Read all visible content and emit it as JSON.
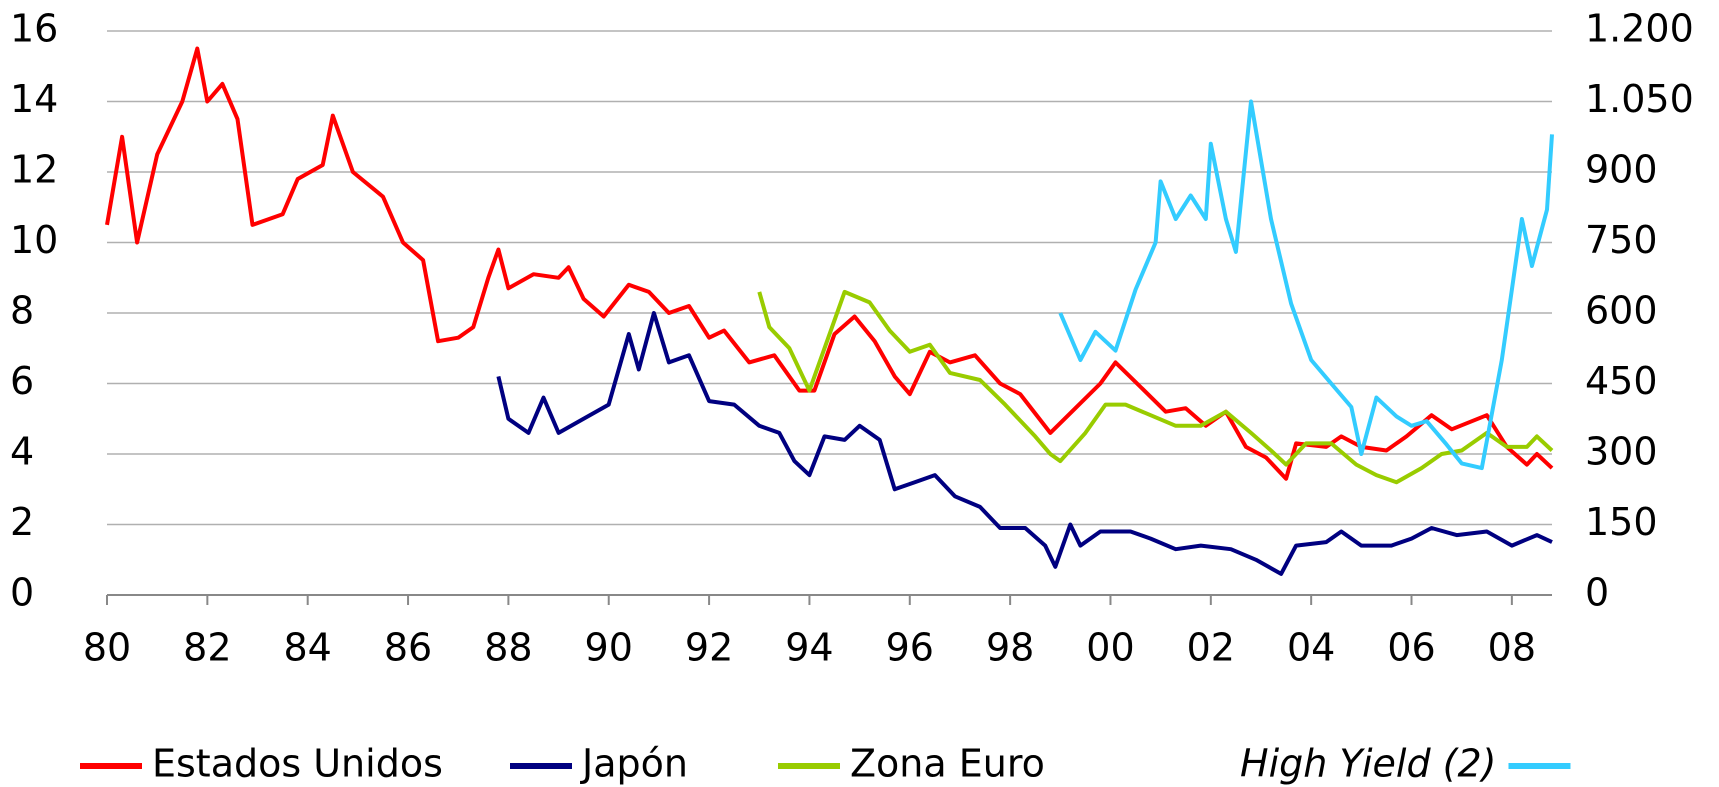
{
  "chart_data": {
    "type": "line",
    "xlim": [
      1980,
      2008.8
    ],
    "xticks": [
      {
        "value": 1980,
        "label": "80"
      },
      {
        "value": 1982,
        "label": "82"
      },
      {
        "value": 1984,
        "label": "84"
      },
      {
        "value": 1986,
        "label": "86"
      },
      {
        "value": 1988,
        "label": "88"
      },
      {
        "value": 1990,
        "label": "90"
      },
      {
        "value": 1992,
        "label": "92"
      },
      {
        "value": 1994,
        "label": "94"
      },
      {
        "value": 1996,
        "label": "96"
      },
      {
        "value": 1998,
        "label": "98"
      },
      {
        "value": 2000,
        "label": "00"
      },
      {
        "value": 2002,
        "label": "02"
      },
      {
        "value": 2004,
        "label": "04"
      },
      {
        "value": 2006,
        "label": "06"
      },
      {
        "value": 2008,
        "label": "08"
      }
    ],
    "ylim": [
      0,
      16
    ],
    "yticks": [
      0,
      2,
      4,
      6,
      8,
      10,
      12,
      14,
      16
    ],
    "y2lim": [
      0,
      1200
    ],
    "y2ticks": [
      0,
      150,
      300,
      450,
      600,
      750,
      900,
      {
        "value": 1050,
        "label": "1.050"
      },
      {
        "value": 1200,
        "label": "1.200"
      }
    ],
    "grid": true,
    "series": [
      {
        "name": "Estados Unidos",
        "color": "#ff0000",
        "x": [
          1980.0,
          1980.3,
          1980.6,
          1981.0,
          1981.5,
          1981.8,
          1982.0,
          1982.3,
          1982.6,
          1982.9,
          1983.5,
          1983.8,
          1984.3,
          1984.5,
          1984.9,
          1985.5,
          1985.9,
          1986.3,
          1986.6,
          1987.0,
          1987.3,
          1987.6,
          1987.8,
          1988.0,
          1988.5,
          1989.0,
          1989.2,
          1989.5,
          1989.9,
          1990.4,
          1990.8,
          1991.2,
          1991.6,
          1992.0,
          1992.3,
          1992.8,
          1993.3,
          1993.8,
          1994.1,
          1994.5,
          1994.9,
          1995.3,
          1995.7,
          1996.0,
          1996.4,
          1996.8,
          1997.3,
          1997.8,
          1998.2,
          1998.8,
          1999.3,
          1999.8,
          2000.1,
          2000.6,
          2001.1,
          2001.5,
          2001.9,
          2002.3,
          2002.7,
          2003.1,
          2003.5,
          2003.7,
          2004.3,
          2004.6,
          2005.0,
          2005.5,
          2005.9,
          2006.4,
          2006.8,
          2007.5,
          2007.9,
          2008.3,
          2008.5,
          2008.8
        ],
        "values": [
          10.5,
          13,
          10,
          12.5,
          14,
          15.5,
          14,
          14.5,
          13.5,
          10.5,
          10.8,
          11.8,
          12.2,
          13.6,
          12,
          11.3,
          10,
          9.5,
          7.2,
          7.3,
          7.6,
          9,
          9.8,
          8.7,
          9.1,
          9.0,
          9.3,
          8.4,
          7.9,
          8.8,
          8.6,
          8.0,
          8.2,
          7.3,
          7.5,
          6.6,
          6.8,
          5.8,
          5.8,
          7.4,
          7.9,
          7.2,
          6.2,
          5.7,
          6.9,
          6.6,
          6.8,
          6.0,
          5.7,
          4.6,
          5.3,
          6.0,
          6.6,
          5.9,
          5.2,
          5.3,
          4.8,
          5.2,
          4.2,
          3.9,
          3.3,
          4.3,
          4.2,
          4.5,
          4.2,
          4.1,
          4.5,
          5.1,
          4.7,
          5.1,
          4.2,
          3.7,
          4.0,
          3.6
        ]
      },
      {
        "name": "Japón",
        "color": "#000080",
        "x": [
          1987.8,
          1988.0,
          1988.4,
          1988.7,
          1989.0,
          1989.5,
          1990.0,
          1990.4,
          1990.6,
          1990.9,
          1991.2,
          1991.6,
          1992.0,
          1992.5,
          1993.0,
          1993.4,
          1993.7,
          1994.0,
          1994.3,
          1994.7,
          1995.0,
          1995.4,
          1995.7,
          1996.1,
          1996.5,
          1996.9,
          1997.4,
          1997.8,
          1998.3,
          1998.7,
          1998.9,
          1999.2,
          1999.4,
          1999.8,
          2000.4,
          2000.8,
          2001.3,
          2001.8,
          2002.4,
          2002.9,
          2003.4,
          2003.7,
          2004.3,
          2004.6,
          2005.0,
          2005.6,
          2006.0,
          2006.4,
          2006.9,
          2007.5,
          2008.0,
          2008.5,
          2008.8
        ],
        "values": [
          6.2,
          5.0,
          4.6,
          5.6,
          4.6,
          5.0,
          5.4,
          7.4,
          6.4,
          8.0,
          6.6,
          6.8,
          5.5,
          5.4,
          4.8,
          4.6,
          3.8,
          3.4,
          4.5,
          4.4,
          4.8,
          4.4,
          3.0,
          3.2,
          3.4,
          2.8,
          2.5,
          1.9,
          1.9,
          1.4,
          0.8,
          2.0,
          1.4,
          1.8,
          1.8,
          1.6,
          1.3,
          1.4,
          1.3,
          1.0,
          0.6,
          1.4,
          1.5,
          1.8,
          1.4,
          1.4,
          1.6,
          1.9,
          1.7,
          1.8,
          1.4,
          1.7,
          1.5
        ]
      },
      {
        "name": "Zona Euro",
        "color": "#99cc00",
        "x": [
          1993.0,
          1993.2,
          1993.6,
          1994.0,
          1994.3,
          1994.7,
          1995.2,
          1995.6,
          1996.0,
          1996.4,
          1996.8,
          1997.4,
          1997.9,
          1998.5,
          1998.8,
          1999.0,
          1999.5,
          1999.9,
          2000.3,
          2000.8,
          2001.3,
          2001.8,
          2002.3,
          2002.8,
          2003.2,
          2003.5,
          2003.9,
          2004.4,
          2004.9,
          2005.3,
          2005.7,
          2006.2,
          2006.6,
          2007.0,
          2007.5,
          2007.9,
          2008.3,
          2008.5,
          2008.8
        ],
        "values": [
          8.6,
          7.6,
          7.0,
          5.8,
          7.0,
          8.6,
          8.3,
          7.5,
          6.9,
          7.1,
          6.3,
          6.1,
          5.4,
          4.5,
          4.0,
          3.8,
          4.6,
          5.4,
          5.4,
          5.1,
          4.8,
          4.8,
          5.2,
          4.6,
          4.1,
          3.7,
          4.3,
          4.3,
          3.7,
          3.4,
          3.2,
          3.6,
          4.0,
          4.1,
          4.6,
          4.2,
          4.2,
          4.5,
          4.1
        ]
      },
      {
        "name": "High Yield (2)",
        "color": "#33ccff",
        "axis": "y2",
        "x": [
          1999.0,
          1999.4,
          1999.7,
          2000.1,
          2000.5,
          2000.9,
          2001.0,
          2001.3,
          2001.6,
          2001.9,
          2002.0,
          2002.3,
          2002.5,
          2002.8,
          2003.2,
          2003.6,
          2004.0,
          2004.4,
          2004.8,
          2005.0,
          2005.3,
          2005.7,
          2006.0,
          2006.3,
          2006.7,
          2007.0,
          2007.4,
          2007.8,
          2008.0,
          2008.2,
          2008.4,
          2008.7,
          2008.8
        ],
        "values": [
          600,
          500,
          560,
          520,
          650,
          750,
          880,
          800,
          850,
          800,
          960,
          800,
          730,
          1050,
          800,
          620,
          500,
          450,
          400,
          300,
          420,
          380,
          360,
          370,
          320,
          280,
          270,
          500,
          650,
          800,
          700,
          820,
          980
        ]
      }
    ]
  }
}
